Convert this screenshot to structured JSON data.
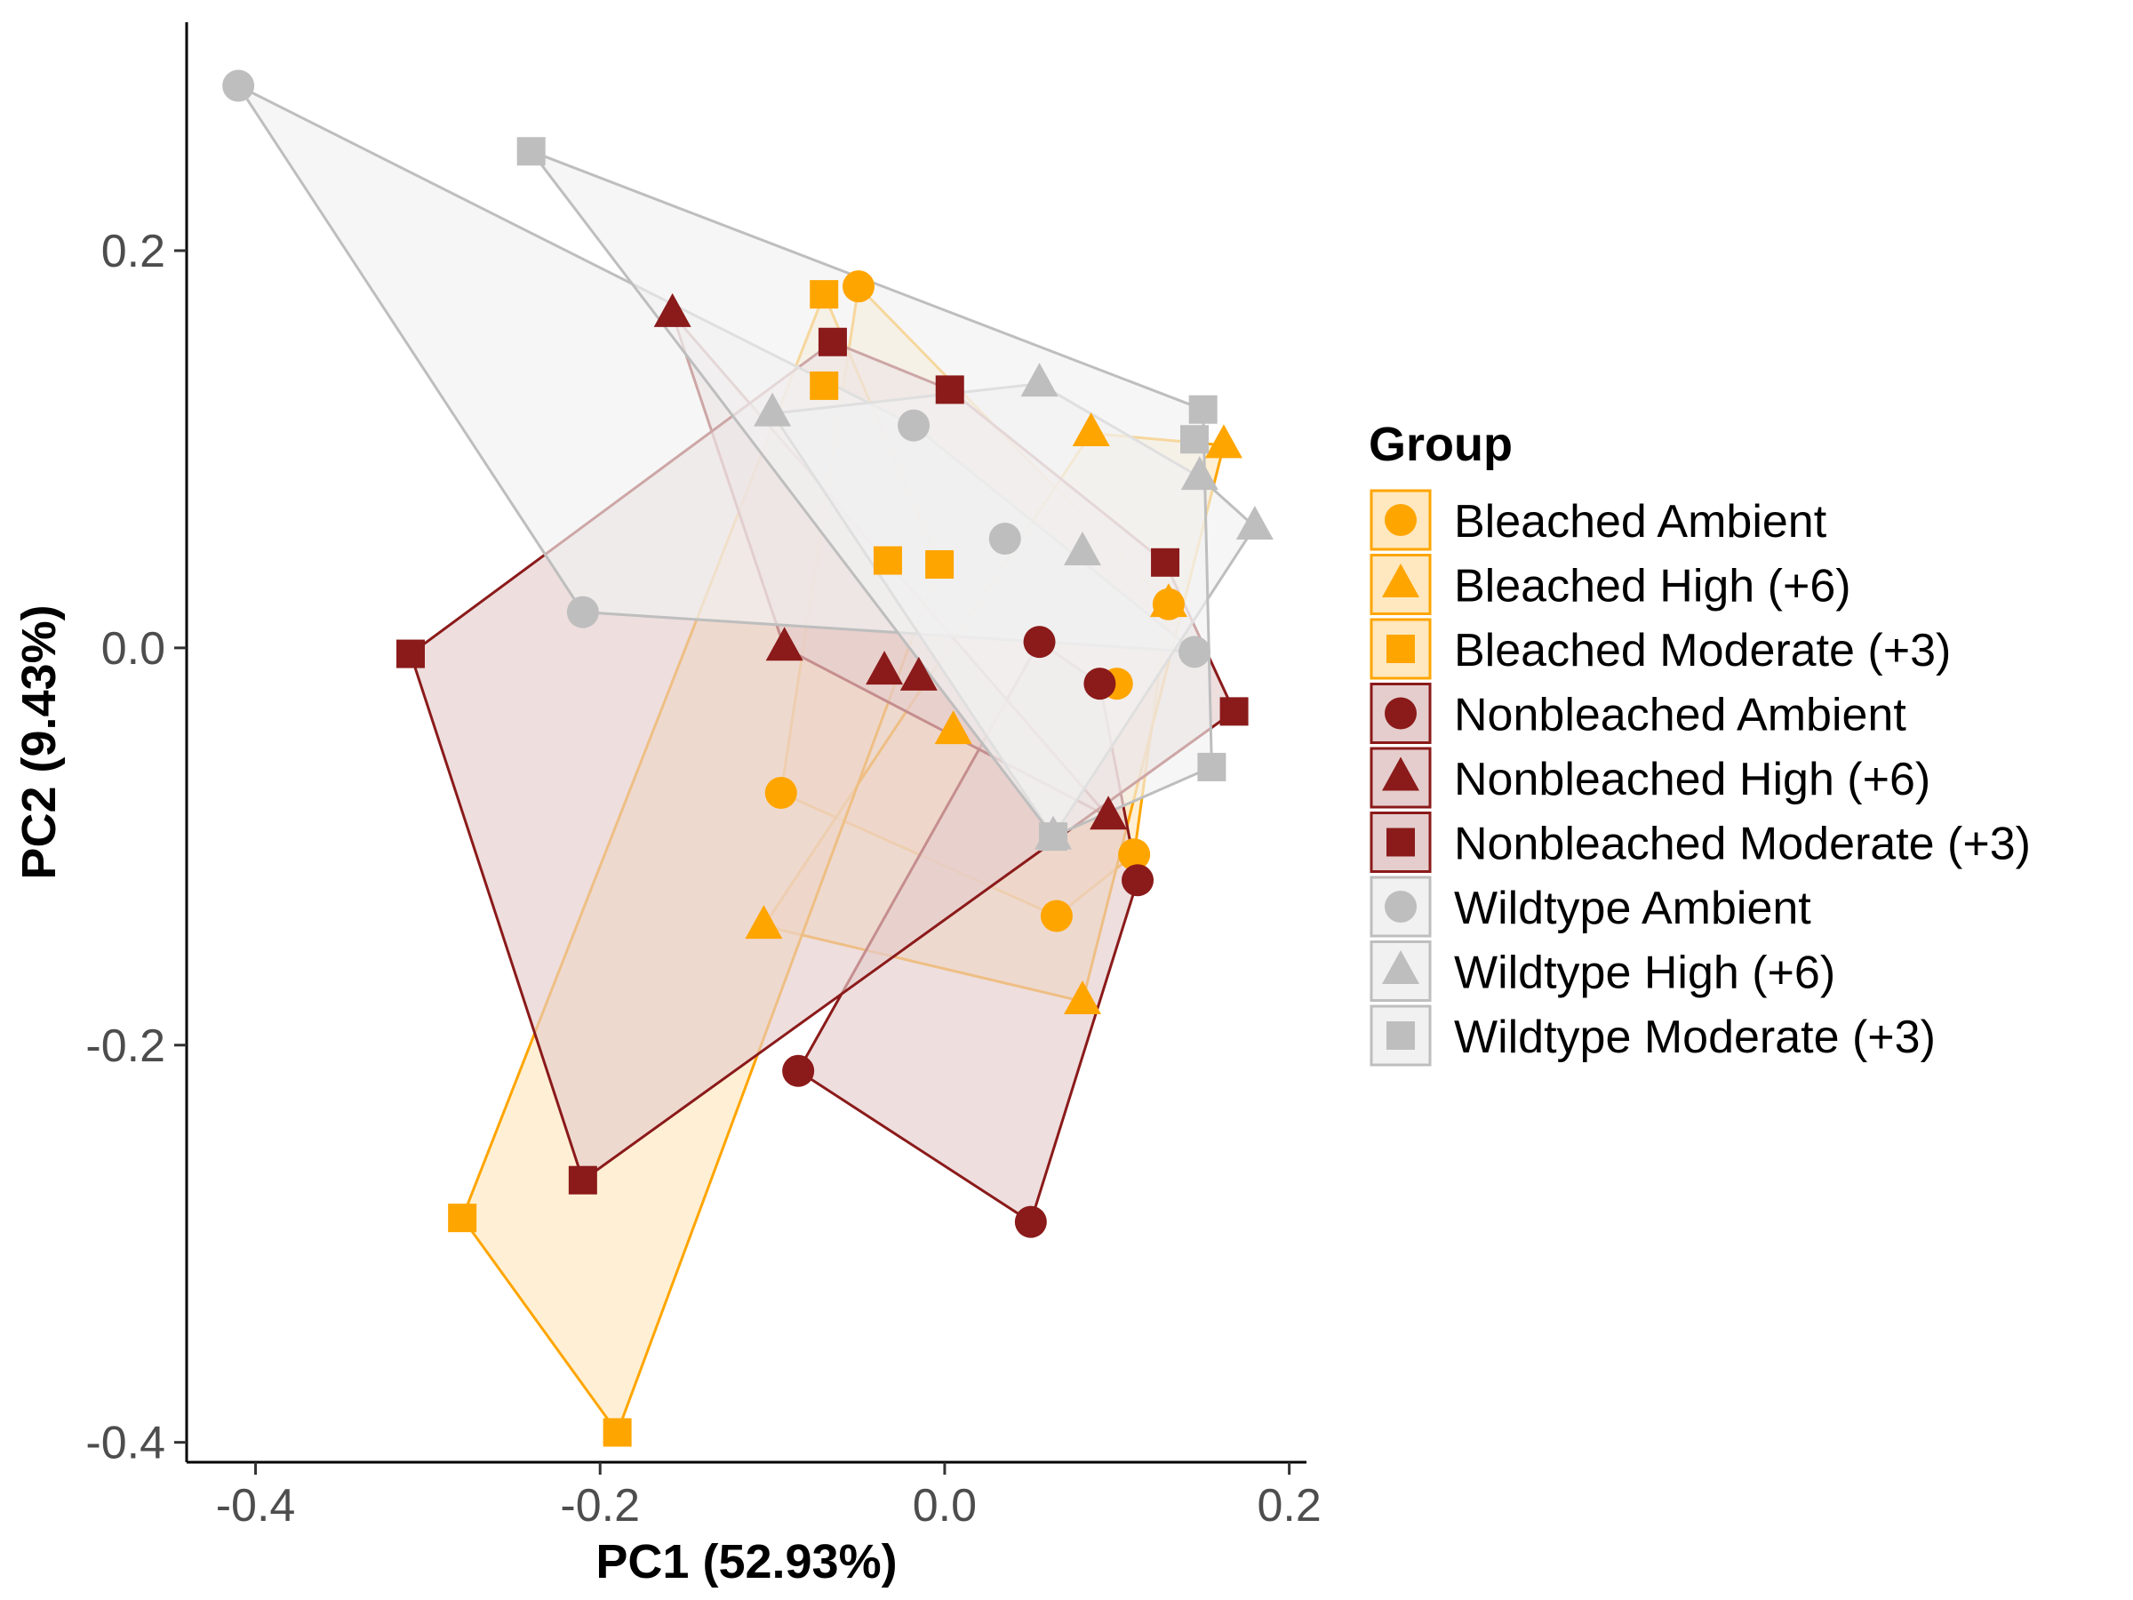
{
  "chart_data": {
    "type": "scatter",
    "title": "",
    "xlabel": "PC1 (52.93%)",
    "ylabel": "PC2 (9.43%)",
    "xlim": [
      -0.44,
      0.21
    ],
    "ylim": [
      -0.41,
      0.315
    ],
    "xticks": [
      -0.4,
      -0.2,
      0.0,
      0.2
    ],
    "xtick_labels": [
      "-0.4",
      "-0.2",
      "0.0",
      "0.2"
    ],
    "yticks": [
      -0.4,
      -0.2,
      0.0,
      0.2
    ],
    "ytick_labels": [
      "-0.4",
      "-0.2",
      "0.0",
      "0.2"
    ],
    "grid": false,
    "legend": {
      "title": "Group",
      "placement": "right"
    },
    "series": [
      {
        "name": "Bleached Ambient",
        "condition": "Bleached",
        "shape": "circle",
        "color": "#FFA500",
        "fill": "#FFE8BF",
        "points": [
          [
            -0.05,
            0.182
          ],
          [
            -0.095,
            -0.073
          ],
          [
            0.065,
            -0.135
          ],
          [
            0.11,
            -0.104
          ],
          [
            0.13,
            0.022
          ],
          [
            0.1,
            -0.018
          ]
        ]
      },
      {
        "name": "Bleached High (+6)",
        "condition": "Bleached",
        "shape": "triangle",
        "color": "#FFA500",
        "fill": "#FFE8BF",
        "points": [
          [
            0.162,
            0.102
          ],
          [
            0.085,
            0.108
          ],
          [
            -0.105,
            -0.14
          ],
          [
            0.08,
            -0.178
          ],
          [
            0.005,
            -0.042
          ],
          [
            0.13,
            0.022
          ]
        ]
      },
      {
        "name": "Bleached Moderate (+3)",
        "condition": "Bleached",
        "shape": "square",
        "color": "#FFA500",
        "fill": "#FFE8BF",
        "points": [
          [
            -0.07,
            0.178
          ],
          [
            -0.07,
            0.132
          ],
          [
            -0.033,
            0.044
          ],
          [
            -0.003,
            0.042
          ],
          [
            -0.19,
            -0.395
          ],
          [
            -0.28,
            -0.287
          ]
        ]
      },
      {
        "name": "Nonbleached Ambient",
        "condition": "Nonbleached",
        "shape": "circle",
        "color": "#8B1A1A",
        "fill": "#E5CDCD",
        "points": [
          [
            0.055,
            0.003
          ],
          [
            0.09,
            -0.018
          ],
          [
            0.112,
            -0.117
          ],
          [
            0.05,
            -0.289
          ],
          [
            -0.085,
            -0.213
          ]
        ]
      },
      {
        "name": "Nonbleached High (+6)",
        "condition": "Nonbleached",
        "shape": "triangle",
        "color": "#8B1A1A",
        "fill": "#E5CDCD",
        "points": [
          [
            -0.158,
            0.168
          ],
          [
            -0.093,
            0.0
          ],
          [
            -0.035,
            -0.012
          ],
          [
            -0.015,
            -0.015
          ],
          [
            0.095,
            -0.085
          ]
        ]
      },
      {
        "name": "Nonbleached Moderate (+3)",
        "condition": "Nonbleached",
        "shape": "square",
        "color": "#8B1A1A",
        "fill": "#E5CDCD",
        "points": [
          [
            -0.065,
            0.154
          ],
          [
            0.003,
            0.13
          ],
          [
            0.128,
            0.043
          ],
          [
            0.168,
            -0.032
          ],
          [
            -0.21,
            -0.268
          ],
          [
            -0.31,
            -0.003
          ]
        ]
      },
      {
        "name": "Wildtype Ambient",
        "condition": "Wildtype",
        "shape": "circle",
        "color": "#BEBEBE",
        "fill": "#F1F1F1",
        "points": [
          [
            -0.41,
            0.283
          ],
          [
            -0.018,
            0.112
          ],
          [
            0.035,
            0.055
          ],
          [
            0.145,
            -0.002
          ],
          [
            -0.21,
            0.018
          ]
        ]
      },
      {
        "name": "Wildtype High (+6)",
        "condition": "Wildtype",
        "shape": "triangle",
        "color": "#BEBEBE",
        "fill": "#F1F1F1",
        "points": [
          [
            0.055,
            0.133
          ],
          [
            0.148,
            0.086
          ],
          [
            0.18,
            0.061
          ],
          [
            0.08,
            0.048
          ],
          [
            0.063,
            -0.095
          ],
          [
            -0.1,
            0.118
          ]
        ]
      },
      {
        "name": "Wildtype Moderate (+3)",
        "condition": "Wildtype",
        "shape": "square",
        "color": "#BEBEBE",
        "fill": "#F1F1F1",
        "points": [
          [
            -0.24,
            0.25
          ],
          [
            0.15,
            0.12
          ],
          [
            0.145,
            0.105
          ],
          [
            0.155,
            -0.06
          ],
          [
            0.063,
            -0.095
          ]
        ]
      }
    ]
  }
}
